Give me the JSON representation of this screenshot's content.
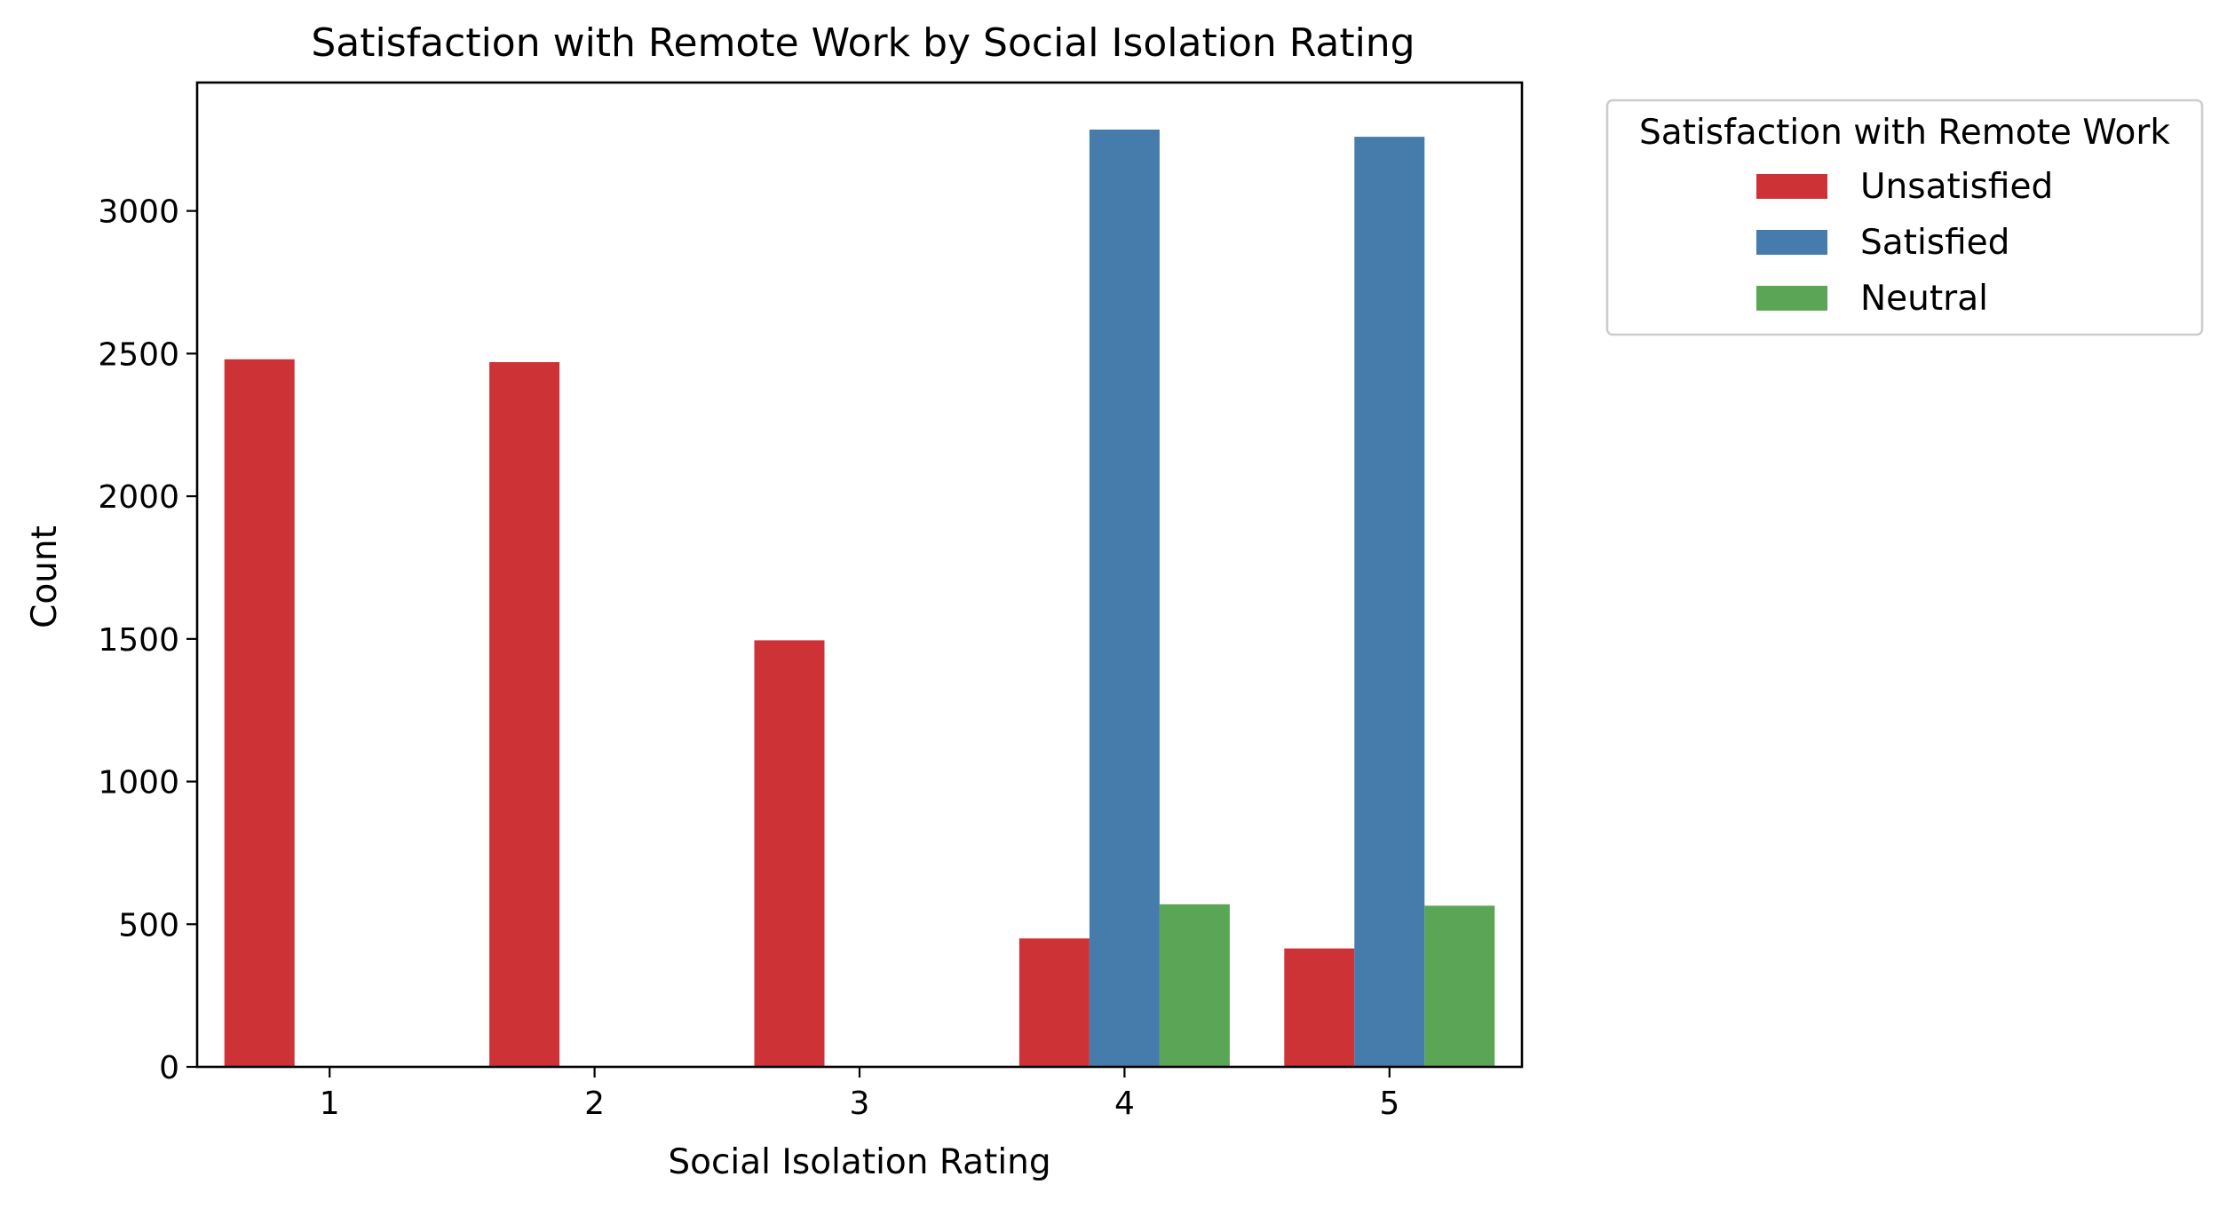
{
  "chart_data": {
    "type": "bar",
    "title": "Satisfaction with Remote Work by Social Isolation Rating",
    "xlabel": "Social Isolation Rating",
    "ylabel": "Count",
    "categories": [
      "1",
      "2",
      "3",
      "4",
      "5"
    ],
    "yticks": [
      0,
      500,
      1000,
      1500,
      2000,
      2500,
      3000
    ],
    "ylim": [
      0,
      3450
    ],
    "grid": false,
    "legend": {
      "title": "Satisfaction with Remote Work",
      "placement": "outside-top-right"
    },
    "series": [
      {
        "name": "Unsatisfied",
        "color": "#cd3236",
        "values": [
          2480,
          2470,
          1495,
          450,
          415
        ]
      },
      {
        "name": "Satisfied",
        "color": "#457cab",
        "values": [
          0,
          0,
          0,
          3285,
          3260
        ]
      },
      {
        "name": "Neutral",
        "color": "#5aa556",
        "values": [
          0,
          0,
          0,
          570,
          565
        ]
      }
    ]
  }
}
